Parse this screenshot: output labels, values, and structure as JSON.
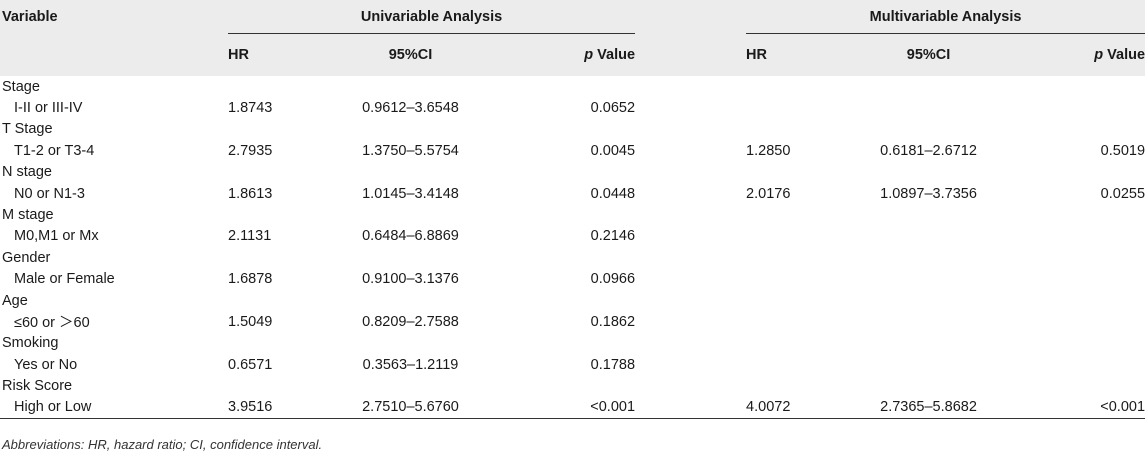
{
  "header": {
    "variable": "Variable",
    "univariable": "Univariable Analysis",
    "multivariable": "Multivariable Analysis",
    "hr": "HR",
    "ci": "95%CI",
    "p_italic": "p",
    "p_rest": " Value"
  },
  "rows": [
    {
      "category": "Stage",
      "level": "I-II or III-IV",
      "uni_hr": "1.8743",
      "uni_ci": "0.9612–3.6548",
      "uni_p": "0.0652",
      "multi_hr": "",
      "multi_ci": "",
      "multi_p": ""
    },
    {
      "category": "T Stage",
      "level": "T1-2 or T3-4",
      "uni_hr": "2.7935",
      "uni_ci": "1.3750–5.5754",
      "uni_p": "0.0045",
      "multi_hr": "1.2850",
      "multi_ci": "0.6181–2.6712",
      "multi_p": "0.5019"
    },
    {
      "category": "N stage",
      "level": "N0 or N1-3",
      "uni_hr": "1.8613",
      "uni_ci": "1.0145–3.4148",
      "uni_p": "0.0448",
      "multi_hr": "2.0176",
      "multi_ci": "1.0897–3.7356",
      "multi_p": "0.0255"
    },
    {
      "category": "M stage",
      "level": "M0,M1 or Mx",
      "uni_hr": "2.1131",
      "uni_ci": "0.6484–6.8869",
      "uni_p": "0.2146",
      "multi_hr": "",
      "multi_ci": "",
      "multi_p": ""
    },
    {
      "category": "Gender",
      "level": "Male or Female",
      "uni_hr": "1.6878",
      "uni_ci": "0.9100–3.1376",
      "uni_p": "0.0966",
      "multi_hr": "",
      "multi_ci": "",
      "multi_p": ""
    },
    {
      "category": "Age",
      "level": "≤60 or ＞60",
      "uni_hr": "1.5049",
      "uni_ci": "0.8209–2.7588",
      "uni_p": "0.1862",
      "multi_hr": "",
      "multi_ci": "",
      "multi_p": ""
    },
    {
      "category": "Smoking",
      "level": "Yes or No",
      "uni_hr": "0.6571",
      "uni_ci": "0.3563–1.2119",
      "uni_p": "0.1788",
      "multi_hr": "",
      "multi_ci": "",
      "multi_p": ""
    },
    {
      "category": "Risk Score",
      "level": "High or Low",
      "uni_hr": "3.9516",
      "uni_ci": "2.7510–5.6760",
      "uni_p": "<0.001",
      "multi_hr": "4.0072",
      "multi_ci": "2.7365–5.8682",
      "multi_p": "<0.001"
    }
  ],
  "footnote": "Abbreviations: HR, hazard ratio; CI, confidence interval."
}
